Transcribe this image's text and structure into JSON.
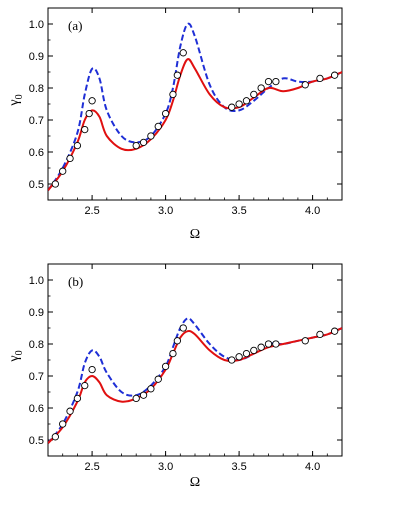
{
  "chart_data": [
    {
      "type": "line",
      "panel_label": "(a)",
      "xlabel": "Ω",
      "ylabel": "γ",
      "ylabel_sub": "0",
      "xlim": [
        2.2,
        4.2
      ],
      "ylim": [
        0.45,
        1.05
      ],
      "xticks": [
        2.5,
        3.0,
        3.5,
        4.0
      ],
      "xtick_labels": [
        "2.5",
        "3.0",
        "3.5",
        "4.0"
      ],
      "yticks": [
        0.5,
        0.6,
        0.7,
        0.8,
        0.9,
        1.0
      ],
      "ytick_labels": [
        "0.5",
        "0.6",
        "0.7",
        "0.8",
        "0.9",
        "1.0"
      ],
      "grid": false,
      "series": [
        {
          "style": "dashed",
          "color": "#1f2fd6",
          "x": [
            2.2,
            2.3,
            2.4,
            2.45,
            2.5,
            2.55,
            2.6,
            2.7,
            2.8,
            2.9,
            3.0,
            3.05,
            3.1,
            3.15,
            3.2,
            3.3,
            3.4,
            3.5,
            3.6,
            3.7,
            3.8,
            3.9,
            4.0,
            4.1,
            4.2
          ],
          "y": [
            0.48,
            0.55,
            0.66,
            0.78,
            0.86,
            0.83,
            0.73,
            0.65,
            0.63,
            0.65,
            0.72,
            0.8,
            0.93,
            1.0,
            0.96,
            0.81,
            0.74,
            0.73,
            0.76,
            0.8,
            0.83,
            0.82,
            0.82,
            0.83,
            0.85
          ]
        },
        {
          "style": "solid",
          "color": "#e01010",
          "x": [
            2.2,
            2.3,
            2.4,
            2.45,
            2.5,
            2.55,
            2.6,
            2.7,
            2.8,
            2.9,
            3.0,
            3.05,
            3.1,
            3.15,
            3.2,
            3.3,
            3.4,
            3.5,
            3.6,
            3.7,
            3.8,
            3.9,
            4.0,
            4.1,
            4.2
          ],
          "y": [
            0.48,
            0.54,
            0.63,
            0.7,
            0.73,
            0.71,
            0.65,
            0.61,
            0.61,
            0.64,
            0.7,
            0.76,
            0.84,
            0.89,
            0.86,
            0.78,
            0.74,
            0.74,
            0.77,
            0.8,
            0.79,
            0.8,
            0.82,
            0.83,
            0.85
          ]
        },
        {
          "style": "circles",
          "color": "#000000",
          "x": [
            2.25,
            2.3,
            2.35,
            2.4,
            2.45,
            2.48,
            2.5,
            2.8,
            2.85,
            2.9,
            2.95,
            3.0,
            3.05,
            3.08,
            3.12,
            3.45,
            3.5,
            3.55,
            3.6,
            3.65,
            3.7,
            3.75,
            3.95,
            4.05,
            4.15
          ],
          "y": [
            0.5,
            0.54,
            0.58,
            0.62,
            0.67,
            0.72,
            0.76,
            0.62,
            0.63,
            0.65,
            0.68,
            0.72,
            0.78,
            0.84,
            0.91,
            0.74,
            0.75,
            0.76,
            0.78,
            0.8,
            0.82,
            0.82,
            0.81,
            0.83,
            0.84
          ]
        }
      ]
    },
    {
      "type": "line",
      "panel_label": "(b)",
      "xlabel": "Ω",
      "ylabel": "γ",
      "ylabel_sub": "0",
      "xlim": [
        2.2,
        4.2
      ],
      "ylim": [
        0.45,
        1.05
      ],
      "xticks": [
        2.5,
        3.0,
        3.5,
        4.0
      ],
      "xtick_labels": [
        "2.5",
        "3.0",
        "3.5",
        "4.0"
      ],
      "yticks": [
        0.5,
        0.6,
        0.7,
        0.8,
        0.9,
        1.0
      ],
      "ytick_labels": [
        "0.5",
        "0.6",
        "0.7",
        "0.8",
        "0.9",
        "1.0"
      ],
      "grid": false,
      "series": [
        {
          "style": "dashed",
          "color": "#1f2fd6",
          "x": [
            2.2,
            2.3,
            2.4,
            2.45,
            2.5,
            2.55,
            2.6,
            2.7,
            2.8,
            2.9,
            3.0,
            3.05,
            3.1,
            3.15,
            3.2,
            3.3,
            3.4,
            3.5,
            3.6,
            3.7,
            3.8,
            3.9,
            4.0,
            4.1,
            4.2
          ],
          "y": [
            0.49,
            0.55,
            0.65,
            0.74,
            0.78,
            0.76,
            0.71,
            0.65,
            0.64,
            0.67,
            0.73,
            0.79,
            0.85,
            0.88,
            0.86,
            0.8,
            0.76,
            0.75,
            0.77,
            0.8,
            0.8,
            0.81,
            0.82,
            0.83,
            0.85
          ]
        },
        {
          "style": "solid",
          "color": "#e01010",
          "x": [
            2.2,
            2.3,
            2.4,
            2.45,
            2.5,
            2.55,
            2.6,
            2.7,
            2.8,
            2.9,
            3.0,
            3.05,
            3.1,
            3.15,
            3.2,
            3.3,
            3.4,
            3.5,
            3.6,
            3.7,
            3.8,
            3.9,
            4.0,
            4.1,
            4.2
          ],
          "y": [
            0.49,
            0.54,
            0.62,
            0.68,
            0.7,
            0.68,
            0.64,
            0.62,
            0.63,
            0.66,
            0.72,
            0.77,
            0.82,
            0.84,
            0.83,
            0.78,
            0.75,
            0.75,
            0.77,
            0.79,
            0.8,
            0.81,
            0.82,
            0.83,
            0.85
          ]
        },
        {
          "style": "circles",
          "color": "#000000",
          "x": [
            2.25,
            2.3,
            2.35,
            2.4,
            2.45,
            2.5,
            2.8,
            2.85,
            2.9,
            2.95,
            3.0,
            3.05,
            3.08,
            3.12,
            3.45,
            3.5,
            3.55,
            3.6,
            3.65,
            3.7,
            3.75,
            3.95,
            4.05,
            4.15
          ],
          "y": [
            0.51,
            0.55,
            0.59,
            0.63,
            0.67,
            0.72,
            0.63,
            0.64,
            0.66,
            0.69,
            0.73,
            0.77,
            0.81,
            0.85,
            0.75,
            0.76,
            0.77,
            0.78,
            0.79,
            0.8,
            0.8,
            0.81,
            0.83,
            0.84
          ]
        }
      ]
    }
  ]
}
